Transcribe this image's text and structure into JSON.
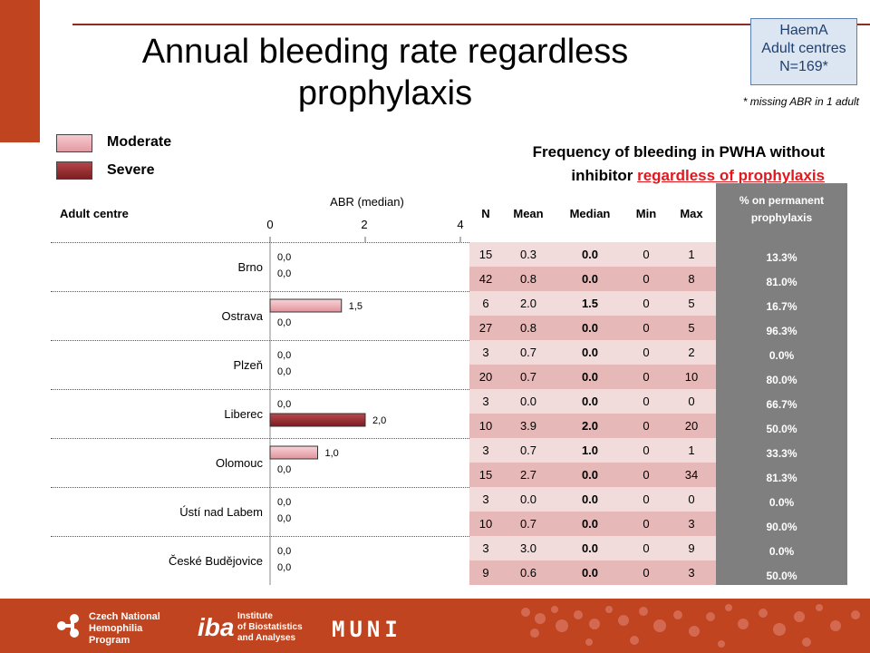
{
  "title": "Annual bleeding rate regardless prophylaxis",
  "info_box": [
    "HaemA",
    "Adult centres",
    "N=169*"
  ],
  "missing_note": "* missing ABR in 1 adult",
  "legend": [
    {
      "label": "Moderate",
      "color": "#e8a3ab"
    },
    {
      "label": "Severe",
      "color": "#9b2e33"
    }
  ],
  "subtitle_line1": "Frequency of bleeding in PWHA without",
  "subtitle_line2_plain": "inhibitor",
  "subtitle_line2_red": "regardless of prophylaxis",
  "table_headers": {
    "centre": "Adult centre",
    "n": "N",
    "mean": "Mean",
    "median": "Median",
    "min": "Min",
    "max": "Max",
    "pct": "% on permanent prophylaxis"
  },
  "chart_data": {
    "type": "bar",
    "orientation": "horizontal",
    "xlabel": "ABR (median)",
    "xlim": [
      0,
      4
    ],
    "xticks": [
      "0",
      "2",
      "4"
    ],
    "categories": [
      "Brno",
      "Ostrava",
      "Plzeň",
      "Liberec",
      "Olomouc",
      "Ústí nad Labem",
      "České Budějovice"
    ],
    "series": [
      {
        "name": "Moderate",
        "values": [
          0.0,
          1.5,
          0.0,
          0.0,
          1.0,
          0.0,
          0.0
        ],
        "labels": [
          "0,0",
          "1,5",
          "0,0",
          "0,0",
          "1,0",
          "0,0",
          "0,0"
        ]
      },
      {
        "name": "Severe",
        "values": [
          0.0,
          0.0,
          0.0,
          2.0,
          0.0,
          0.0,
          0.0
        ],
        "labels": [
          "0,0",
          "0,0",
          "0,0",
          "2,0",
          "0,0",
          "0,0",
          "0,0"
        ]
      }
    ]
  },
  "table_rows": [
    {
      "n": "15",
      "mean": "0.3",
      "median": "0.0",
      "min": "0",
      "max": "1",
      "pct": "13.3%"
    },
    {
      "n": "42",
      "mean": "0.8",
      "median": "0.0",
      "min": "0",
      "max": "8",
      "pct": "81.0%"
    },
    {
      "n": "6",
      "mean": "2.0",
      "median": "1.5",
      "min": "0",
      "max": "5",
      "pct": "16.7%"
    },
    {
      "n": "27",
      "mean": "0.8",
      "median": "0.0",
      "min": "0",
      "max": "5",
      "pct": "96.3%"
    },
    {
      "n": "3",
      "mean": "0.7",
      "median": "0.0",
      "min": "0",
      "max": "2",
      "pct": "0.0%"
    },
    {
      "n": "20",
      "mean": "0.7",
      "median": "0.0",
      "min": "0",
      "max": "10",
      "pct": "80.0%"
    },
    {
      "n": "3",
      "mean": "0.0",
      "median": "0.0",
      "min": "0",
      "max": "0",
      "pct": "66.7%"
    },
    {
      "n": "10",
      "mean": "3.9",
      "median": "2.0",
      "min": "0",
      "max": "20",
      "pct": "50.0%"
    },
    {
      "n": "3",
      "mean": "0.7",
      "median": "1.0",
      "min": "0",
      "max": "1",
      "pct": "33.3%"
    },
    {
      "n": "15",
      "mean": "2.7",
      "median": "0.0",
      "min": "0",
      "max": "34",
      "pct": "81.3%"
    },
    {
      "n": "3",
      "mean": "0.0",
      "median": "0.0",
      "min": "0",
      "max": "0",
      "pct": "0.0%"
    },
    {
      "n": "10",
      "mean": "0.7",
      "median": "0.0",
      "min": "0",
      "max": "3",
      "pct": "90.0%"
    },
    {
      "n": "3",
      "mean": "3.0",
      "median": "0.0",
      "min": "0",
      "max": "9",
      "pct": "0.0%"
    },
    {
      "n": "9",
      "mean": "0.6",
      "median": "0.0",
      "min": "0",
      "max": "3",
      "pct": "50.0%"
    }
  ],
  "footer": {
    "logo1": [
      "Czech National",
      "Hemophilia",
      "Program"
    ],
    "logo2_mark": "iba",
    "logo2": [
      "Institute",
      "of Biostatistics",
      "and Analyses"
    ],
    "logo3": "MUNI"
  }
}
